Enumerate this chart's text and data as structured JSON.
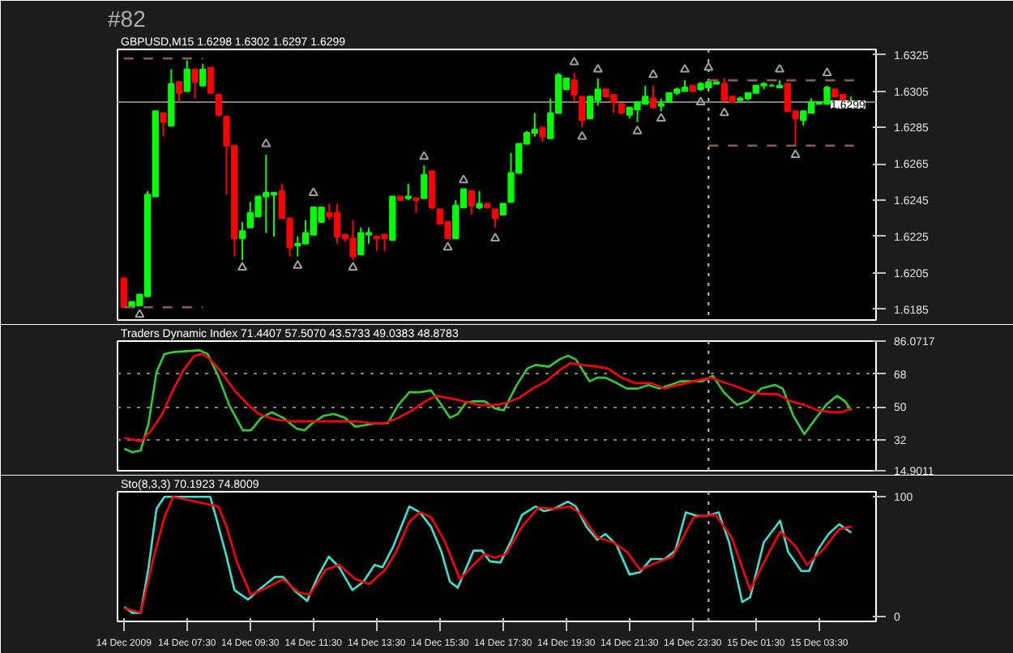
{
  "chart_data": [
    {
      "type": "candlestick",
      "title": "GBPUSD,M15 1.6298 1.6302 1.6297 1.6299",
      "annotations": [
        "#82"
      ],
      "x": [
        "2009-12-14T05:30",
        "2009-12-14T05:45",
        "2009-12-14T06:00",
        "2009-12-14T06:15",
        "2009-12-14T06:30",
        "2009-12-14T06:45",
        "2009-12-14T07:00",
        "2009-12-14T07:15",
        "2009-12-14T07:30",
        "2009-12-14T07:45",
        "2009-12-14T08:00",
        "2009-12-14T08:15",
        "2009-12-14T08:30",
        "2009-12-14T08:45",
        "2009-12-14T09:00",
        "2009-12-14T09:15",
        "2009-12-14T09:30",
        "2009-12-14T09:45",
        "2009-12-14T10:00",
        "2009-12-14T10:15",
        "2009-12-14T10:30",
        "2009-12-14T10:45",
        "2009-12-14T11:00",
        "2009-12-14T11:15",
        "2009-12-14T11:30",
        "2009-12-14T11:45",
        "2009-12-14T12:00",
        "2009-12-14T12:15",
        "2009-12-14T12:30",
        "2009-12-14T12:45",
        "2009-12-14T13:00",
        "2009-12-14T13:15",
        "2009-12-14T13:30",
        "2009-12-14T13:45",
        "2009-12-14T14:00",
        "2009-12-14T14:15",
        "2009-12-14T14:30",
        "2009-12-14T14:45",
        "2009-12-14T15:00",
        "2009-12-14T15:15",
        "2009-12-14T15:30",
        "2009-12-14T15:45",
        "2009-12-14T16:00",
        "2009-12-14T16:15",
        "2009-12-14T16:30",
        "2009-12-14T16:45",
        "2009-12-14T17:00",
        "2009-12-14T17:15",
        "2009-12-14T17:30",
        "2009-12-14T17:45",
        "2009-12-14T18:00",
        "2009-12-14T18:15",
        "2009-12-14T18:30",
        "2009-12-14T18:45",
        "2009-12-14T19:00",
        "2009-12-14T19:15",
        "2009-12-14T19:30",
        "2009-12-14T19:45",
        "2009-12-14T20:00",
        "2009-12-14T20:15",
        "2009-12-14T20:30",
        "2009-12-14T20:45",
        "2009-12-14T21:00",
        "2009-12-14T21:15",
        "2009-12-14T21:30",
        "2009-12-14T21:45",
        "2009-12-14T22:00",
        "2009-12-14T22:15",
        "2009-12-14T22:30",
        "2009-12-14T22:45",
        "2009-12-14T23:00",
        "2009-12-14T23:15",
        "2009-12-14T23:30",
        "2009-12-14T23:45",
        "2009-12-15T00:00",
        "2009-12-15T00:15",
        "2009-12-15T00:30",
        "2009-12-15T00:45",
        "2009-12-15T01:00",
        "2009-12-15T01:15",
        "2009-12-15T01:30",
        "2009-12-15T01:45",
        "2009-12-15T02:00",
        "2009-12-15T02:15",
        "2009-12-15T02:30",
        "2009-12-15T02:45",
        "2009-12-15T03:00",
        "2009-12-15T03:15",
        "2009-12-15T03:30",
        "2009-12-15T03:45",
        "2009-12-15T04:00",
        "2009-12-15T04:15",
        "2009-12-15T04:30"
      ],
      "ohlc": [
        [
          1.6202,
          1.6202,
          1.6186,
          1.6186
        ],
        [
          1.6186,
          1.6189,
          1.6186,
          1.6189
        ],
        [
          1.6187,
          1.6193,
          1.6187,
          1.6193
        ],
        [
          1.6192,
          1.625,
          1.6192,
          1.6248
        ],
        [
          1.6247,
          1.6294,
          1.6247,
          1.6294
        ],
        [
          1.6293,
          1.6293,
          1.628,
          1.6288
        ],
        [
          1.6286,
          1.6317,
          1.6286,
          1.6309
        ],
        [
          1.631,
          1.631,
          1.6299,
          1.6304
        ],
        [
          1.6305,
          1.6322,
          1.6305,
          1.6317
        ],
        [
          1.6317,
          1.6317,
          1.6301,
          1.631
        ],
        [
          1.6308,
          1.632,
          1.6308,
          1.6317
        ],
        [
          1.6318,
          1.6318,
          1.6304,
          1.6304
        ],
        [
          1.6303,
          1.6303,
          1.6291,
          1.6292
        ],
        [
          1.6291,
          1.6291,
          1.6248,
          1.6275
        ],
        [
          1.6275,
          1.6275,
          1.6214,
          1.6224
        ],
        [
          1.6224,
          1.6233,
          1.6212,
          1.6228
        ],
        [
          1.623,
          1.6244,
          1.623,
          1.6238
        ],
        [
          1.6236,
          1.6247,
          1.6236,
          1.6247
        ],
        [
          1.6247,
          1.627,
          1.6227,
          1.6249
        ],
        [
          1.6248,
          1.6249,
          1.6225,
          1.6249
        ],
        [
          1.625,
          1.6254,
          1.6235,
          1.6235
        ],
        [
          1.6235,
          1.6235,
          1.6214,
          1.6219
        ],
        [
          1.622,
          1.6225,
          1.6214,
          1.6221
        ],
        [
          1.6221,
          1.6234,
          1.6221,
          1.6227
        ],
        [
          1.6226,
          1.6241,
          1.6226,
          1.6241
        ],
        [
          1.6233,
          1.6241,
          1.6233,
          1.6241
        ],
        [
          1.6238,
          1.6243,
          1.6234,
          1.6236
        ],
        [
          1.6238,
          1.6243,
          1.6221,
          1.6225
        ],
        [
          1.6226,
          1.6226,
          1.6222,
          1.6224
        ],
        [
          1.6224,
          1.6234,
          1.6212,
          1.6214
        ],
        [
          1.6215,
          1.623,
          1.6215,
          1.6227
        ],
        [
          1.6226,
          1.623,
          1.6221,
          1.6227
        ],
        [
          1.6225,
          1.6225,
          1.6217,
          1.6224
        ],
        [
          1.6226,
          1.6226,
          1.6217,
          1.6224
        ],
        [
          1.6223,
          1.6247,
          1.6223,
          1.6247
        ],
        [
          1.6247,
          1.6247,
          1.6245,
          1.6245
        ],
        [
          1.6246,
          1.6254,
          1.6245,
          1.6247
        ],
        [
          1.6246,
          1.6246,
          1.6238,
          1.6245
        ],
        [
          1.6246,
          1.6264,
          1.6246,
          1.6259
        ],
        [
          1.6261,
          1.6261,
          1.624,
          1.6241
        ],
        [
          1.624,
          1.624,
          1.6232,
          1.6232
        ],
        [
          1.6233,
          1.6233,
          1.6224,
          1.6224
        ],
        [
          1.6224,
          1.6245,
          1.6224,
          1.6242
        ],
        [
          1.6241,
          1.6251,
          1.6241,
          1.6251
        ],
        [
          1.625,
          1.625,
          1.6237,
          1.6242
        ],
        [
          1.6241,
          1.625,
          1.624,
          1.6243
        ],
        [
          1.6243,
          1.6243,
          1.6241,
          1.6241
        ],
        [
          1.624,
          1.624,
          1.623,
          1.6235
        ],
        [
          1.6237,
          1.6243,
          1.6237,
          1.6243
        ],
        [
          1.6244,
          1.6271,
          1.6244,
          1.626
        ],
        [
          1.626,
          1.6276,
          1.626,
          1.6276
        ],
        [
          1.6276,
          1.6283,
          1.6276,
          1.6282
        ],
        [
          1.6282,
          1.6293,
          1.628,
          1.6284
        ],
        [
          1.6285,
          1.6285,
          1.6277,
          1.628
        ],
        [
          1.6279,
          1.6301,
          1.6279,
          1.6293
        ],
        [
          1.6293,
          1.6315,
          1.6293,
          1.6314
        ],
        [
          1.6306,
          1.6312,
          1.6306,
          1.6312
        ],
        [
          1.6311,
          1.6315,
          1.6299,
          1.6303
        ],
        [
          1.6302,
          1.6302,
          1.6285,
          1.6289
        ],
        [
          1.629,
          1.6302,
          1.629,
          1.6302
        ],
        [
          1.63,
          1.6312,
          1.6297,
          1.6306
        ],
        [
          1.6306,
          1.6306,
          1.6302,
          1.6302
        ],
        [
          1.6303,
          1.6303,
          1.6293,
          1.6299
        ],
        [
          1.6298,
          1.6298,
          1.6293,
          1.6293
        ],
        [
          1.6292,
          1.6296,
          1.629,
          1.6296
        ],
        [
          1.6295,
          1.6299,
          1.6288,
          1.6299
        ],
        [
          1.6298,
          1.6308,
          1.6298,
          1.6302
        ],
        [
          1.6301,
          1.6308,
          1.6296,
          1.6296
        ],
        [
          1.6297,
          1.6301,
          1.6294,
          1.6298
        ],
        [
          1.6299,
          1.6304,
          1.6299,
          1.6304
        ],
        [
          1.6304,
          1.6307,
          1.6303,
          1.6306
        ],
        [
          1.6305,
          1.6311,
          1.6305,
          1.6307
        ],
        [
          1.6308,
          1.6308,
          1.6305,
          1.6305
        ],
        [
          1.6306,
          1.631,
          1.6305,
          1.6309
        ],
        [
          1.6307,
          1.631,
          1.6307,
          1.631
        ],
        [
          1.6309,
          1.631,
          1.6309,
          1.631
        ],
        [
          1.6309,
          1.6312,
          1.6299,
          1.63
        ],
        [
          1.6302,
          1.6302,
          1.6299,
          1.6299
        ],
        [
          1.63,
          1.6302,
          1.6299,
          1.6301
        ],
        [
          1.6301,
          1.6304,
          1.63,
          1.6304
        ],
        [
          1.6304,
          1.6308,
          1.6304,
          1.6308
        ],
        [
          1.6308,
          1.631,
          1.6306,
          1.6309
        ],
        [
          1.6308,
          1.6309,
          1.6308,
          1.6308
        ],
        [
          1.6307,
          1.6311,
          1.6307,
          1.6308
        ],
        [
          1.6309,
          1.6309,
          1.6294,
          1.6294
        ],
        [
          1.6294,
          1.6294,
          1.6275,
          1.629
        ],
        [
          1.6289,
          1.6294,
          1.6286,
          1.6294
        ],
        [
          1.6293,
          1.6301,
          1.6293,
          1.6299
        ],
        [
          1.6298,
          1.6299,
          1.6298,
          1.6299
        ],
        [
          1.6298,
          1.6308,
          1.6298,
          1.6307
        ],
        [
          1.6306,
          1.6306,
          1.6302,
          1.6302
        ],
        [
          1.6303,
          1.6303,
          1.6295,
          1.6299
        ],
        [
          1.6298,
          1.6302,
          1.6297,
          1.6299
        ]
      ],
      "series": [
        {
          "type": "scatter",
          "marker": "triangle",
          "color": "#a0a0a0",
          "x": [
            "2009-12-14T10:00",
            "2009-12-14T15:00",
            "2009-12-14T16:15",
            "2009-12-14T11:30",
            "2009-12-14T19:45",
            "2009-12-14T20:30",
            "2009-12-14T22:15",
            "2009-12-14T23:15",
            "2009-12-15T00:00",
            "2009-12-15T02:15",
            "2009-12-15T03:45"
          ],
          "values": [
            1.6276,
            1.6269,
            1.6256,
            1.6249,
            1.6321,
            1.6317,
            1.6314,
            1.6317,
            1.6318,
            1.6317,
            1.6315
          ]
        },
        {
          "type": "scatter",
          "marker": "triangle",
          "color": "#a0a0a0",
          "x": [
            "2009-12-14T06:00",
            "2009-12-14T09:15",
            "2009-12-14T11:00",
            "2009-12-14T12:45",
            "2009-12-14T15:45",
            "2009-12-14T17:15",
            "2009-12-14T20:00",
            "2009-12-14T21:45",
            "2009-12-14T22:30",
            "2009-12-14T23:45",
            "2009-12-15T00:30",
            "2009-12-15T02:45"
          ],
          "values": [
            1.6182,
            1.6208,
            1.6209,
            1.6208,
            1.6219,
            1.6224,
            1.628,
            1.6283,
            1.629,
            1.6299,
            1.6293,
            1.627
          ]
        },
        {
          "type": "line",
          "line_style": "dashed",
          "color": "#8b5a4a",
          "x": [
            "2009-12-14T05:30",
            "2009-12-14T08:00"
          ],
          "values": [
            1.6323,
            1.6323
          ]
        },
        {
          "type": "line",
          "line_style": "dashed",
          "color": "#8b5a4a",
          "x": [
            "2009-12-14T05:30",
            "2009-12-14T08:00"
          ],
          "values": [
            1.6186,
            1.6186
          ]
        },
        {
          "type": "line",
          "line_style": "dashed",
          "color": "#8b5a4a",
          "x": [
            "2009-12-15T00:00",
            "2009-12-15T04:36"
          ],
          "values": [
            1.6311,
            1.6311
          ]
        },
        {
          "type": "line",
          "line_style": "dashed",
          "color": "#8b5a4a",
          "x": [
            "2009-12-15T00:00",
            "2009-12-15T04:36"
          ],
          "values": [
            1.6275,
            1.6275
          ]
        }
      ],
      "ref_lines": [
        {
          "axis": "y",
          "value": 1.6299,
          "label": "1.6299",
          "color": "#808080",
          "line_style": "solid"
        },
        {
          "axis": "x",
          "value": "2009-12-15T00:00",
          "color": "#c0c0c0",
          "line_style": "dotted"
        }
      ],
      "xlim": [
        "2009-12-14T05:18",
        "2009-12-15T05:18"
      ],
      "ylim": [
        1.6179,
        1.6328
      ],
      "yticks": [
        1.6185,
        1.6205,
        1.6225,
        1.6245,
        1.6265,
        1.6285,
        1.6305,
        1.6325
      ],
      "tick_labels": "y"
    },
    {
      "type": "line",
      "title": "Traders Dynamic Index 71.4407 57.5070 43.5733 49.0383 48.8783",
      "series": [
        {
          "color": "#32cd32",
          "x": [
            "2009-12-14T05:31",
            "2009-12-14T05:46",
            "2009-12-14T06:02",
            "2009-12-14T06:17",
            "2009-12-14T06:32",
            "2009-12-14T06:47",
            "2009-12-14T07:03",
            "2009-12-14T07:54",
            "2009-12-14T08:09",
            "2009-12-14T08:29",
            "2009-12-14T08:50",
            "2009-12-14T09:16",
            "2009-12-14T09:31",
            "2009-12-14T09:51",
            "2009-12-14T10:11",
            "2009-12-14T10:32",
            "2009-12-14T10:58",
            "2009-12-14T11:13",
            "2009-12-14T11:28",
            "2009-12-14T11:49",
            "2009-12-14T12:09",
            "2009-12-14T12:29",
            "2009-12-14T12:50",
            "2009-12-14T13:10",
            "2009-12-14T13:31",
            "2009-12-14T13:51",
            "2009-12-14T14:11",
            "2009-12-14T14:32",
            "2009-12-14T14:52",
            "2009-12-14T15:13",
            "2009-12-14T15:33",
            "2009-12-14T15:49",
            "2009-12-14T16:04",
            "2009-12-14T16:19",
            "2009-12-14T16:34",
            "2009-12-14T16:55",
            "2009-12-14T17:15",
            "2009-12-14T17:31",
            "2009-12-14T17:56",
            "2009-12-14T18:16",
            "2009-12-14T18:32",
            "2009-12-14T18:57",
            "2009-12-14T19:17",
            "2009-12-14T19:33",
            "2009-12-14T19:48",
            "2009-12-14T20:14",
            "2009-12-14T20:29",
            "2009-12-14T20:44",
            "2009-12-14T20:59",
            "2009-12-14T21:25",
            "2009-12-14T21:46",
            "2009-12-14T22:06",
            "2009-12-14T22:26",
            "2009-12-14T22:47",
            "2009-12-14T23:07",
            "2009-12-14T23:28",
            "2009-12-14T23:48",
            "2009-12-15T00:08",
            "2009-12-15T00:29",
            "2009-12-15T00:54",
            "2009-12-15T01:14",
            "2009-12-15T01:40",
            "2009-12-15T02:06",
            "2009-12-15T02:21",
            "2009-12-15T02:41",
            "2009-12-15T03:02",
            "2009-12-15T03:17",
            "2009-12-15T03:43",
            "2009-12-15T04:04",
            "2009-12-15T04:19",
            "2009-12-15T04:31"
          ],
          "values": [
            27,
            25,
            26,
            41,
            69,
            79,
            80,
            81,
            79,
            67,
            51,
            37,
            37,
            44,
            47,
            44,
            38,
            37,
            41,
            45,
            46,
            44,
            39,
            40,
            41,
            41,
            51,
            58,
            58,
            59,
            51,
            44,
            46,
            52,
            53,
            53,
            49,
            48,
            62,
            71,
            73,
            72,
            76,
            78,
            76,
            64,
            66,
            66,
            64,
            60,
            60,
            62,
            60,
            62,
            64,
            64,
            64,
            67,
            58,
            51,
            53,
            60,
            62,
            60,
            45,
            35,
            41,
            51,
            56,
            53,
            48
          ]
        },
        {
          "color": "#ff0000",
          "x": [
            "2009-12-14T05:31",
            "2009-12-14T05:46",
            "2009-12-14T06:02",
            "2009-12-14T06:22",
            "2009-12-14T06:43",
            "2009-12-14T07:03",
            "2009-12-14T07:23",
            "2009-12-14T07:44",
            "2009-12-14T07:59",
            "2009-12-14T08:14",
            "2009-12-14T08:35",
            "2009-12-14T09:00",
            "2009-12-14T09:26",
            "2009-12-14T09:46",
            "2009-12-14T10:17",
            "2009-12-14T10:47",
            "2009-12-14T11:28",
            "2009-12-14T12:09",
            "2009-12-14T12:50",
            "2009-12-14T13:20",
            "2009-12-14T13:46",
            "2009-12-14T14:11",
            "2009-12-14T14:37",
            "2009-12-14T15:02",
            "2009-12-14T15:23",
            "2009-12-14T15:43",
            "2009-12-14T16:14",
            "2009-12-14T16:44",
            "2009-12-14T17:15",
            "2009-12-14T17:35",
            "2009-12-14T18:01",
            "2009-12-14T18:26",
            "2009-12-14T18:52",
            "2009-12-14T19:17",
            "2009-12-14T19:38",
            "2009-12-14T19:58",
            "2009-12-14T20:29",
            "2009-12-14T20:49",
            "2009-12-14T21:15",
            "2009-12-14T21:40",
            "2009-12-14T22:11",
            "2009-12-14T22:37",
            "2009-12-14T23:02",
            "2009-12-14T23:32",
            "2009-12-15T00:04",
            "2009-12-15T00:23",
            "2009-12-15T00:54",
            "2009-12-15T01:20",
            "2009-12-15T01:45",
            "2009-12-15T02:11",
            "2009-12-15T02:36",
            "2009-12-15T03:02",
            "2009-12-15T03:28",
            "2009-12-15T03:53",
            "2009-12-15T04:13",
            "2009-12-15T04:31"
          ],
          "values": [
            33,
            32,
            31,
            37,
            46,
            59,
            70,
            78,
            79,
            76,
            69,
            59,
            51,
            46,
            43,
            42,
            42,
            42,
            42,
            41,
            41,
            44,
            48,
            53,
            56,
            55,
            53,
            51,
            51,
            52,
            55,
            60,
            64,
            70,
            74,
            73,
            72,
            71,
            66,
            63,
            63,
            60,
            62,
            64,
            66,
            64,
            61,
            58,
            57,
            57,
            53,
            51,
            48,
            47,
            47,
            49
          ]
        }
      ],
      "ref_lines": [
        {
          "axis": "x",
          "value": "2009-12-15T00:00",
          "color": "#c0c0c0",
          "line_style": "dotted"
        }
      ],
      "grid": "y",
      "xlim": [
        "2009-12-14T05:18",
        "2009-12-15T05:18"
      ],
      "ylim": [
        14.9011,
        86.0717
      ],
      "yticks": [
        14.9011,
        32,
        50,
        68,
        86.0717
      ],
      "tick_labels": "y"
    },
    {
      "type": "line",
      "title": "Sto(8,3,3) 70.1923 74.8009",
      "series": [
        {
          "color": "#40e0d0",
          "x": [
            "2009-12-14T05:31",
            "2009-12-14T05:46",
            "2009-12-14T06:02",
            "2009-12-14T06:17",
            "2009-12-14T06:32",
            "2009-12-14T06:47",
            "2009-12-14T08:14",
            "2009-12-14T08:25",
            "2009-12-14T08:45",
            "2009-12-14T09:00",
            "2009-12-14T09:26",
            "2009-12-14T09:46",
            "2009-12-14T10:17",
            "2009-12-14T10:32",
            "2009-12-14T10:58",
            "2009-12-14T11:18",
            "2009-12-14T11:38",
            "2009-12-14T11:59",
            "2009-12-14T12:19",
            "2009-12-14T12:44",
            "2009-12-14T13:05",
            "2009-12-14T13:26",
            "2009-12-14T13:41",
            "2009-12-14T14:01",
            "2009-12-14T14:32",
            "2009-12-14T14:52",
            "2009-12-14T15:13",
            "2009-12-14T15:33",
            "2009-12-14T15:49",
            "2009-12-14T16:04",
            "2009-12-14T16:34",
            "2009-12-14T16:50",
            "2009-12-14T17:05",
            "2009-12-14T17:25",
            "2009-12-14T17:46",
            "2009-12-14T18:06",
            "2009-12-14T18:32",
            "2009-12-14T18:47",
            "2009-12-14T19:07",
            "2009-12-14T19:33",
            "2009-12-14T19:48",
            "2009-12-14T20:08",
            "2009-12-14T20:29",
            "2009-12-14T20:44",
            "2009-12-14T21:05",
            "2009-12-14T21:30",
            "2009-12-14T21:50",
            "2009-12-14T22:11",
            "2009-12-14T22:37",
            "2009-12-14T22:57",
            "2009-12-14T23:17",
            "2009-12-14T23:38",
            "2009-12-14T23:58",
            "2009-12-15T00:19",
            "2009-12-15T00:39",
            "2009-12-15T01:04",
            "2009-12-15T01:19",
            "2009-12-15T01:45",
            "2009-12-15T02:16",
            "2009-12-15T02:31",
            "2009-12-15T02:56",
            "2009-12-15T03:11",
            "2009-12-15T03:28",
            "2009-12-15T03:48",
            "2009-12-15T04:08",
            "2009-12-15T04:31"
          ],
          "values": [
            8,
            3,
            3,
            41,
            90,
            100,
            100,
            83,
            50,
            22,
            14,
            22,
            33,
            33,
            20,
            13,
            33,
            50,
            41,
            22,
            29,
            43,
            41,
            58,
            92,
            87,
            75,
            54,
            29,
            24,
            55,
            55,
            46,
            45,
            64,
            85,
            92,
            88,
            90,
            96,
            92,
            75,
            64,
            69,
            60,
            35,
            37,
            48,
            48,
            55,
            87,
            84,
            84,
            87,
            62,
            12,
            16,
            62,
            80,
            54,
            38,
            38,
            56,
            69,
            77,
            70
          ]
        },
        {
          "color": "#ff0000",
          "x": [
            "2009-12-14T05:31",
            "2009-12-14T06:02",
            "2009-12-14T06:27",
            "2009-12-14T06:47",
            "2009-12-14T06:58",
            "2009-12-14T07:03",
            "2009-12-14T08:29",
            "2009-12-14T08:45",
            "2009-12-14T09:05",
            "2009-12-14T09:31",
            "2009-12-14T10:01",
            "2009-12-14T10:32",
            "2009-12-14T11:02",
            "2009-12-14T11:23",
            "2009-12-14T11:53",
            "2009-12-14T12:19",
            "2009-12-14T12:50",
            "2009-12-14T13:16",
            "2009-12-14T13:46",
            "2009-12-14T14:07",
            "2009-12-14T14:32",
            "2009-12-14T14:52",
            "2009-12-14T15:13",
            "2009-12-14T15:38",
            "2009-12-14T16:08",
            "2009-12-14T16:29",
            "2009-12-14T16:55",
            "2009-12-14T17:15",
            "2009-12-14T17:35",
            "2009-12-14T18:06",
            "2009-12-14T18:37",
            "2009-12-14T19:07",
            "2009-12-14T19:38",
            "2009-12-14T19:58",
            "2009-12-14T20:29",
            "2009-12-14T20:59",
            "2009-12-14T21:25",
            "2009-12-14T21:50",
            "2009-12-14T22:21",
            "2009-12-14T22:52",
            "2009-12-14T23:32",
            "2009-12-15T00:13",
            "2009-12-15T00:44",
            "2009-12-15T01:19",
            "2009-12-15T01:45",
            "2009-12-15T02:16",
            "2009-12-15T02:46",
            "2009-12-15T03:07",
            "2009-12-15T03:38",
            "2009-12-15T04:08",
            "2009-12-15T04:31"
          ],
          "values": [
            7,
            3,
            50,
            83,
            94,
            100,
            92,
            75,
            45,
            18,
            24,
            31,
            20,
            18,
            39,
            43,
            31,
            27,
            39,
            54,
            79,
            87,
            83,
            64,
            31,
            41,
            52,
            49,
            52,
            75,
            91,
            90,
            92,
            85,
            66,
            62,
            54,
            39,
            45,
            50,
            83,
            85,
            66,
            22,
            45,
            71,
            58,
            43,
            56,
            73,
            75
          ]
        }
      ],
      "ref_lines": [
        {
          "axis": "x",
          "value": "2009-12-15T00:00",
          "color": "#c0c0c0",
          "line_style": "dotted"
        }
      ],
      "xlim": [
        "2009-12-14T05:18",
        "2009-12-15T05:18"
      ],
      "ylim": [
        -4.2,
        104.2
      ],
      "yticks": [
        0,
        100
      ],
      "xticks": [
        {
          "value": "2009-12-14T05:30",
          "label": "14 Dec 2009"
        },
        {
          "value": "2009-12-14T07:30",
          "label": "14 Dec 07:30"
        },
        {
          "value": "2009-12-14T09:30",
          "label": "14 Dec 09:30"
        },
        {
          "value": "2009-12-14T11:30",
          "label": "14 Dec 11:30"
        },
        {
          "value": "2009-12-14T13:30",
          "label": "14 Dec 13:30"
        },
        {
          "value": "2009-12-14T15:30",
          "label": "14 Dec 15:30"
        },
        {
          "value": "2009-12-14T17:30",
          "label": "14 Dec 17:30"
        },
        {
          "value": "2009-12-14T19:30",
          "label": "14 Dec 19:30"
        },
        {
          "value": "2009-12-14T21:30",
          "label": "14 Dec 21:30"
        },
        {
          "value": "2009-12-14T23:30",
          "label": "14 Dec 23:30"
        },
        {
          "value": "2009-12-15T01:30",
          "label": "15 Dec 01:30"
        },
        {
          "value": "2009-12-15T03:30",
          "label": "15 Dec 03:30"
        }
      ]
    }
  ]
}
